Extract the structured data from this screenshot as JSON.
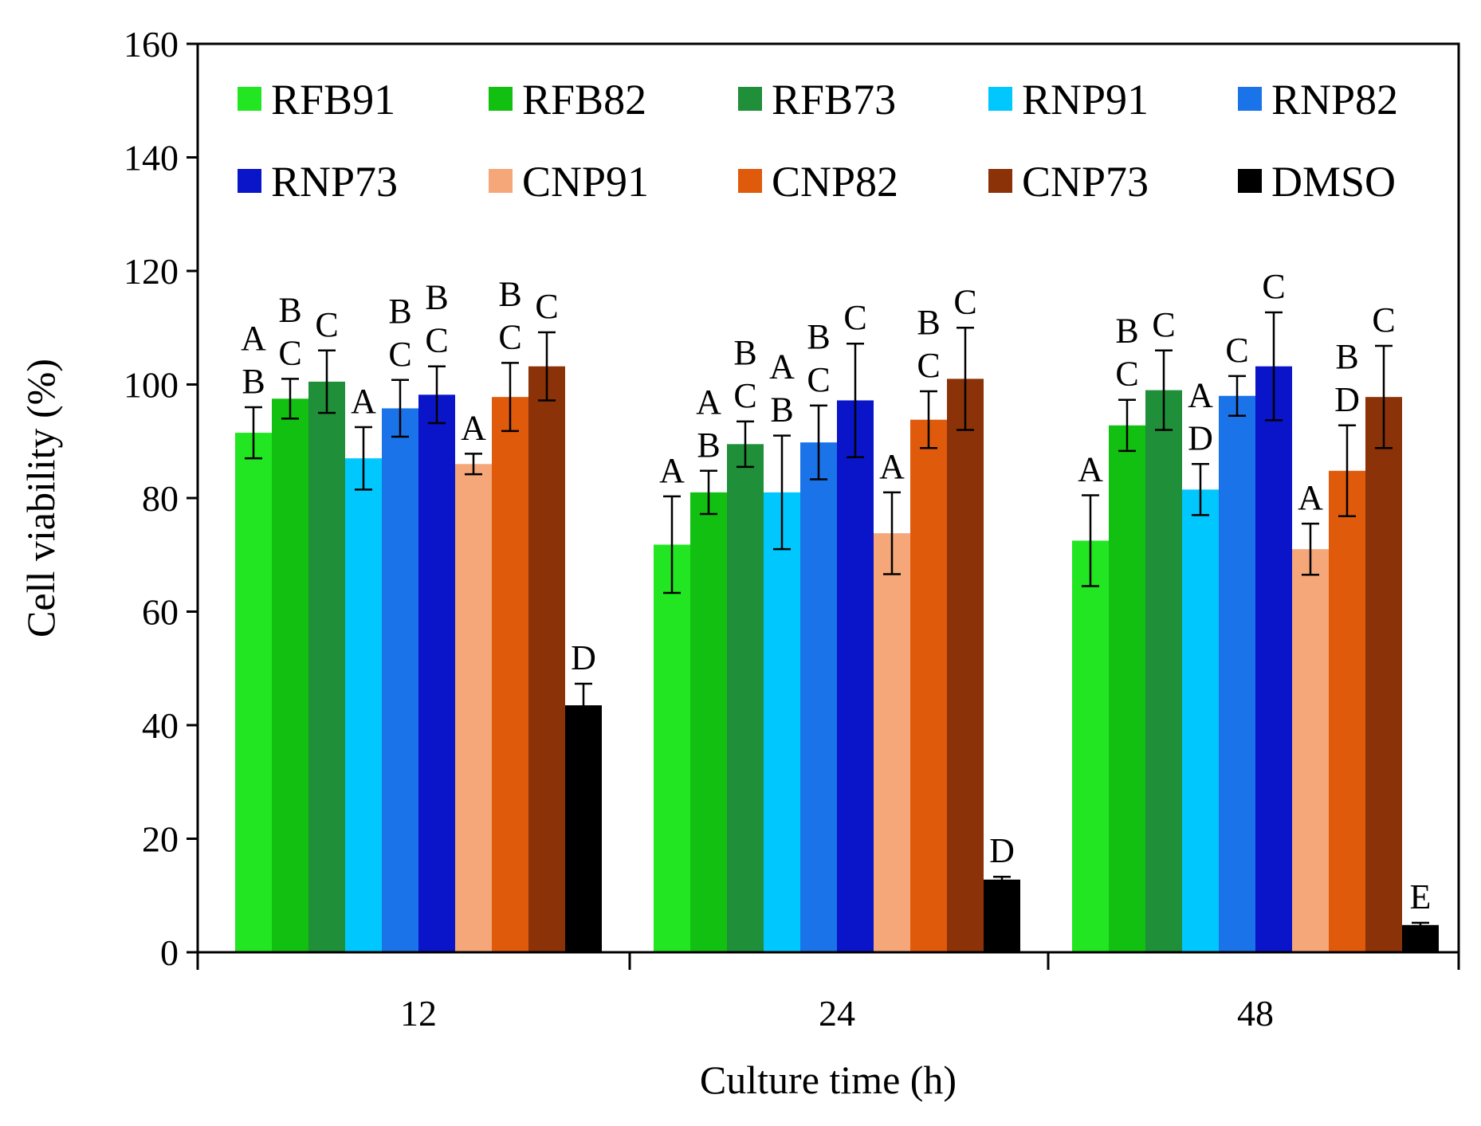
{
  "chart_data": {
    "type": "bar",
    "title": "",
    "xlabel": "Culture time (h)",
    "ylabel": "Cell viability (%)",
    "ylim": [
      0,
      160
    ],
    "yticks": [
      0,
      20,
      40,
      60,
      80,
      100,
      120,
      140,
      160
    ],
    "categories": [
      "12",
      "24",
      "48"
    ],
    "legend_position": "top",
    "series": [
      {
        "name": "RFB91",
        "color": "#22e622",
        "values": [
          91.5,
          71.8,
          72.5
        ],
        "errors": [
          4.5,
          8.5,
          8.0
        ],
        "letters": [
          [
            "A",
            "B"
          ],
          [
            "A"
          ],
          [
            "A"
          ]
        ]
      },
      {
        "name": "RFB82",
        "color": "#12c012",
        "values": [
          97.5,
          81.0,
          92.8
        ],
        "errors": [
          3.5,
          3.8,
          4.5
        ],
        "letters": [
          [
            "B",
            "C"
          ],
          [
            "A",
            "B"
          ],
          [
            "B",
            "C"
          ]
        ]
      },
      {
        "name": "RFB73",
        "color": "#1f8f3a",
        "values": [
          100.5,
          89.5,
          99.0
        ],
        "errors": [
          5.5,
          4.0,
          7.0
        ],
        "letters": [
          [
            "C"
          ],
          [
            "B",
            "C"
          ],
          [
            "C"
          ]
        ]
      },
      {
        "name": "RNP91",
        "color": "#00c8ff",
        "values": [
          87.0,
          81.0,
          81.5
        ],
        "errors": [
          5.5,
          10.0,
          4.5
        ],
        "letters": [
          [
            "A"
          ],
          [
            "A",
            "B"
          ],
          [
            "A",
            "D"
          ]
        ]
      },
      {
        "name": "RNP82",
        "color": "#1a73e8",
        "values": [
          95.8,
          89.8,
          98.0
        ],
        "errors": [
          5.0,
          6.5,
          3.5
        ],
        "letters": [
          [
            "B",
            "C"
          ],
          [
            "B",
            "C"
          ],
          [
            "C"
          ]
        ]
      },
      {
        "name": "RNP73",
        "color": "#0a14c8",
        "values": [
          98.2,
          97.2,
          103.2
        ],
        "errors": [
          5.0,
          10.0,
          9.5
        ],
        "letters": [
          [
            "B",
            "C"
          ],
          [
            "C"
          ],
          [
            "C"
          ]
        ]
      },
      {
        "name": "CNP91",
        "color": "#f5a77a",
        "values": [
          86.0,
          73.8,
          71.0
        ],
        "errors": [
          1.8,
          7.2,
          4.5
        ],
        "letters": [
          [
            "A"
          ],
          [
            "A"
          ],
          [
            "A"
          ]
        ]
      },
      {
        "name": "CNP82",
        "color": "#e05a0c",
        "values": [
          97.8,
          93.8,
          84.8
        ],
        "errors": [
          6.0,
          5.0,
          8.0
        ],
        "letters": [
          [
            "B",
            "C"
          ],
          [
            "B",
            "C"
          ],
          [
            "B",
            "D"
          ]
        ]
      },
      {
        "name": "CNP73",
        "color": "#8b3209",
        "values": [
          103.2,
          101.0,
          97.8
        ],
        "errors": [
          6.0,
          9.0,
          9.0
        ],
        "letters": [
          [
            "C"
          ],
          [
            "C"
          ],
          [
            "C"
          ]
        ]
      },
      {
        "name": "DMSO",
        "color": "#000000",
        "values": [
          43.5,
          12.8,
          4.8
        ],
        "errors": [
          3.8,
          0.5,
          0.4
        ],
        "letters": [
          [
            "D"
          ],
          [
            "D"
          ],
          [
            "E"
          ]
        ]
      }
    ]
  }
}
